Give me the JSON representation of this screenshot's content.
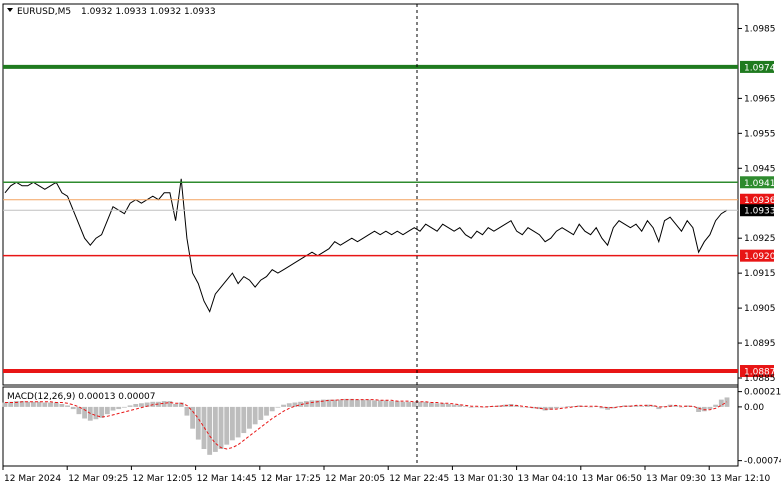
{
  "header": {
    "symbol": "EURUSD,M5",
    "ohlc": "1.0932 1.0933 1.0932 1.0933",
    "macd_label": "MACD(12,26,9) 0.00013 0.00007"
  },
  "colors": {
    "price_line": "#000000",
    "green_thick": "#1f7a1f",
    "green_thin": "#2e8b2e",
    "orange_line": "#f4a460",
    "red_thin": "#e81515",
    "red_thick": "#e81515",
    "current_price_bg": "#000000",
    "macd_hist": "#bdbdbd",
    "macd_signal": "#e81515",
    "grid": "#000000"
  },
  "chart_data": {
    "type": "line",
    "title": "EURUSD,M5",
    "ylim": [
      1.0883,
      1.0992
    ],
    "y_ticks": [
      "1.0985",
      "1.0965",
      "1.0955",
      "1.0945",
      "1.0925",
      "1.0915",
      "1.0905",
      "1.0895",
      "1.0885"
    ],
    "x_labels": [
      "12 Mar 2024",
      "12 Mar 09:25",
      "12 Mar 12:05",
      "12 Mar 14:45",
      "12 Mar 17:25",
      "12 Mar 20:05",
      "12 Mar 22:45",
      "13 Mar 01:30",
      "13 Mar 04:10",
      "13 Mar 06:50",
      "13 Mar 09:30",
      "13 Mar 12:10"
    ],
    "price": [
      1.0938,
      1.094,
      1.0941,
      1.094,
      1.094,
      1.0941,
      1.094,
      1.0939,
      1.094,
      1.0941,
      1.0938,
      1.0937,
      1.0933,
      1.0929,
      1.0925,
      1.0923,
      1.0925,
      1.0926,
      1.093,
      1.0934,
      1.0933,
      1.0932,
      1.0935,
      1.0936,
      1.0935,
      1.0936,
      1.0937,
      1.0936,
      1.0938,
      1.0938,
      1.093,
      1.0942,
      1.0925,
      1.0915,
      1.0912,
      1.0907,
      1.0904,
      1.0909,
      1.0911,
      1.0913,
      1.0915,
      1.0912,
      1.0914,
      1.0913,
      1.0911,
      1.0913,
      1.0914,
      1.0916,
      1.0915,
      1.0916,
      1.0917,
      1.0918,
      1.0919,
      1.092,
      1.0921,
      1.092,
      1.0921,
      1.0922,
      1.0924,
      1.0923,
      1.0924,
      1.0925,
      1.0924,
      1.0925,
      1.0926,
      1.0927,
      1.0926,
      1.0927,
      1.0926,
      1.0927,
      1.0926,
      1.0927,
      1.0928,
      1.0927,
      1.0929,
      1.0928,
      1.0927,
      1.0929,
      1.0928,
      1.0927,
      1.0928,
      1.0926,
      1.0925,
      1.0927,
      1.0926,
      1.0928,
      1.0927,
      1.0928,
      1.0929,
      1.093,
      1.0927,
      1.0926,
      1.0928,
      1.0927,
      1.0926,
      1.0924,
      1.0925,
      1.0927,
      1.0928,
      1.0927,
      1.0926,
      1.0929,
      1.0927,
      1.0926,
      1.0928,
      1.0925,
      1.0923,
      1.0928,
      1.093,
      1.0929,
      1.0928,
      1.0929,
      1.0927,
      1.093,
      1.0928,
      1.0924,
      1.093,
      1.0931,
      1.0929,
      1.0927,
      1.093,
      1.0928,
      1.0921,
      1.0924,
      1.0926,
      1.093,
      1.0932,
      1.0933
    ],
    "levels": [
      {
        "value": 1.0974,
        "label": "1.0974",
        "style": "thick-green"
      },
      {
        "value": 1.0941,
        "label": "1.0941",
        "style": "thin-green"
      },
      {
        "value": 1.0936,
        "label": "1.0936",
        "style": "orange"
      },
      {
        "value": 1.0933,
        "label": "1.0933",
        "style": "current-price"
      },
      {
        "value": 1.092,
        "label": "1.0920",
        "style": "thin-red"
      },
      {
        "value": 1.0887,
        "label": "1.0887",
        "style": "thick-red"
      }
    ],
    "macd": {
      "name": "MACD(12,26,9)",
      "ylim": [
        -0.0008,
        0.00026
      ],
      "y_ticks": [
        "0.00021",
        "0.00",
        "-0.00074"
      ],
      "histogram": [
        6e-05,
        7e-05,
        8e-05,
        8e-05,
        7e-05,
        7e-05,
        7e-05,
        6e-05,
        6e-05,
        6e-05,
        4e-05,
        2e-05,
        -3e-05,
        -0.0001,
        -0.00016,
        -0.00019,
        -0.00017,
        -0.00015,
        -0.0001,
        -5e-05,
        -3e-05,
        -1e-05,
        2e-05,
        4e-05,
        5e-05,
        6e-05,
        7e-05,
        7e-05,
        8e-05,
        8e-05,
        4e-05,
        6e-05,
        -0.00012,
        -0.0003,
        -0.00045,
        -0.00058,
        -0.00066,
        -0.00062,
        -0.00058,
        -0.00052,
        -0.00046,
        -0.00042,
        -0.00036,
        -0.0003,
        -0.00024,
        -0.00018,
        -0.00012,
        -6e-05,
        -1e-05,
        3e-05,
        5e-05,
        6e-05,
        7e-05,
        8e-05,
        9e-05,
        9e-05,
        0.0001,
        0.0001,
        0.0001,
        0.0001,
        0.00011,
        0.00011,
        0.0001,
        0.0001,
        0.0001,
        9e-05,
        9e-05,
        9e-05,
        8e-05,
        8e-05,
        7e-05,
        7e-05,
        7e-05,
        7e-05,
        7e-05,
        6e-05,
        5e-05,
        5e-05,
        4e-05,
        3e-05,
        3e-05,
        1e-05,
        -1e-05,
        0.0,
        0.0,
        1e-05,
        1e-05,
        2e-05,
        3e-05,
        4e-05,
        2e-05,
        0.0,
        -1e-05,
        -2e-05,
        -3e-05,
        -5e-05,
        -4e-05,
        -2e-05,
        0.0,
        1e-05,
        1e-05,
        2e-05,
        1e-05,
        0.0,
        1e-05,
        -2e-05,
        -4e-05,
        -2e-05,
        1e-05,
        2e-05,
        2e-05,
        2e-05,
        1e-05,
        3e-05,
        2e-05,
        -3e-05,
        1e-05,
        3e-05,
        2e-05,
        0.0,
        2e-05,
        1e-05,
        -7e-05,
        -6e-05,
        -3e-05,
        3e-05,
        0.0001,
        0.00013
      ],
      "signal": [
        6e-05,
        6e-05,
        6e-05,
        7e-05,
        7e-05,
        7e-05,
        7e-05,
        7e-05,
        7e-05,
        6e-05,
        6e-05,
        5e-05,
        3e-05,
        0.0,
        -4e-05,
        -9e-05,
        -0.00012,
        -0.00014,
        -0.00013,
        -0.00011,
        -9e-05,
        -7e-05,
        -5e-05,
        -3e-05,
        -1e-05,
        1e-05,
        3e-05,
        4e-05,
        5e-05,
        6e-05,
        5e-05,
        5e-05,
        2e-05,
        -6e-05,
        -0.00016,
        -0.00028,
        -0.0004,
        -0.0005,
        -0.00056,
        -0.00058,
        -0.00056,
        -0.00052,
        -0.00046,
        -0.0004,
        -0.00034,
        -0.00028,
        -0.00022,
        -0.00016,
        -0.00011,
        -6e-05,
        -2e-05,
        1e-05,
        3e-05,
        5e-05,
        6e-05,
        7e-05,
        8e-05,
        9e-05,
        9e-05,
        0.0001,
        0.0001,
        0.0001,
        0.0001,
        0.0001,
        0.0001,
        0.0001,
        9e-05,
        9e-05,
        9e-05,
        8e-05,
        8e-05,
        8e-05,
        7e-05,
        7e-05,
        7e-05,
        6e-05,
        6e-05,
        5e-05,
        5e-05,
        4e-05,
        3e-05,
        2e-05,
        1e-05,
        1e-05,
        0.0,
        0.0,
        1e-05,
        1e-05,
        2e-05,
        2e-05,
        2e-05,
        1e-05,
        0.0,
        -1e-05,
        -2e-05,
        -3e-05,
        -3e-05,
        -3e-05,
        -2e-05,
        -1e-05,
        0.0,
        1e-05,
        1e-05,
        1e-05,
        1e-05,
        0.0,
        -1e-05,
        -1e-05,
        0.0,
        1e-05,
        1e-05,
        2e-05,
        2e-05,
        2e-05,
        2e-05,
        0.0,
        0.0,
        1e-05,
        2e-05,
        1e-05,
        1e-05,
        1e-05,
        -2e-05,
        -4e-05,
        -4e-05,
        -2e-05,
        2e-05,
        7e-05
      ]
    }
  }
}
